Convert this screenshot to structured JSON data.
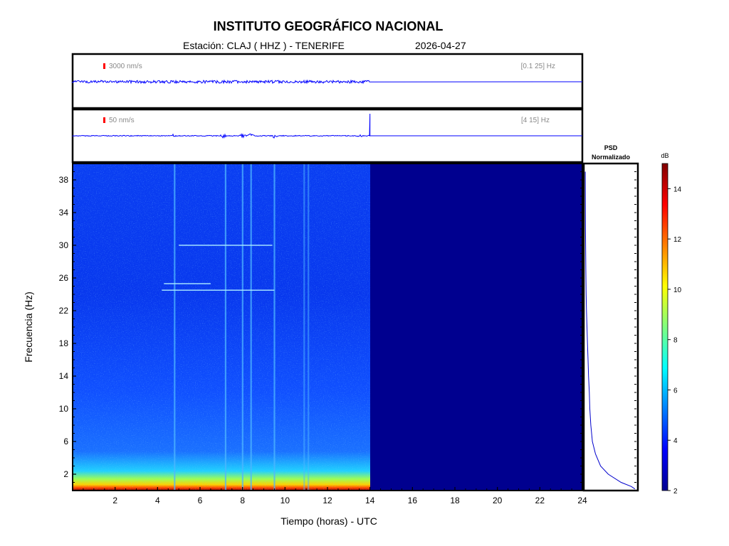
{
  "header": {
    "title": "INSTITUTO GEOGRÁFICO NACIONAL",
    "station": "Estación:  CLAJ ( HHZ ) - TENERIFE",
    "date": "2026-04-27"
  },
  "panels": {
    "trace1": {
      "amplitude_label": "3000 nm/s",
      "band_label": "[0.1 25] Hz"
    },
    "trace2": {
      "amplitude_label": "50 nm/s",
      "band_label": "[4 15] Hz"
    },
    "psd": {
      "title_line1": "PSD",
      "title_line2": "Normalizado"
    },
    "colorbar": {
      "unit": "dB"
    }
  },
  "colors": {
    "trace": "#0000ff",
    "scale_marker": "#ff0000",
    "no_data": "#00008f",
    "frame": "#000000"
  },
  "chart_data": [
    {
      "type": "line",
      "name": "seismogram-broadband",
      "xlabel": "",
      "ylabel": "",
      "xlim": [
        0,
        24
      ],
      "data_until_hour": 14,
      "series": [
        {
          "x": [
            0,
            14,
            14,
            24
          ],
          "y": [
            1,
            1,
            0,
            0
          ]
        }
      ]
    },
    {
      "type": "line",
      "name": "seismogram-filtered",
      "xlim": [
        0,
        24
      ],
      "data_until_hour": 14,
      "transients_hours": [
        4.8,
        7.1,
        8.0,
        8.4,
        9.5,
        13.5
      ]
    },
    {
      "type": "heatmap",
      "xlabel": "Tiempo (horas) - UTC",
      "ylabel": "Frecuencia  (Hz)",
      "xlim": [
        0,
        24
      ],
      "ylim": [
        0,
        40
      ],
      "x_ticks": [
        "2",
        "4",
        "6",
        "8",
        "10",
        "12",
        "14",
        "16",
        "18",
        "20",
        "22",
        "24"
      ],
      "y_ticks": [
        "2",
        "6",
        "10",
        "14",
        "18",
        "22",
        "26",
        "30",
        "34",
        "38"
      ],
      "data_until_hour": 14,
      "vertical_events_hours": [
        4.8,
        7.2,
        8.0,
        8.4,
        9.5,
        10.9,
        11.1
      ],
      "horizontal_lines": [
        {
          "freq_hz": 24.5,
          "from_hour": 4.2,
          "to_hour": 9.5
        },
        {
          "freq_hz": 25.3,
          "from_hour": 4.3,
          "to_hour": 6.5
        },
        {
          "freq_hz": 30.0,
          "from_hour": 5.0,
          "to_hour": 9.4
        }
      ]
    },
    {
      "type": "line",
      "name": "psd-normalized",
      "xlim": [
        0,
        1
      ],
      "ylim": [
        0,
        40
      ],
      "x": [
        0.97,
        0.9,
        0.7,
        0.45,
        0.3,
        0.2,
        0.14,
        0.11,
        0.09,
        0.08,
        0.065,
        0.055,
        0.045,
        0.035,
        0.025,
        0.018,
        0.012,
        0.006,
        0.002
      ],
      "y": [
        0.2,
        0.5,
        1.0,
        2.0,
        3.0,
        4.5,
        6.0,
        8.0,
        10.0,
        12.0,
        14.0,
        16.0,
        18.0,
        20.0,
        22.0,
        24.0,
        27.0,
        32.0,
        39.0
      ]
    },
    {
      "type": "heatmap",
      "name": "colorbar",
      "ylabel": "dB",
      "ylim": [
        2,
        15
      ],
      "ticks": [
        "2",
        "4",
        "6",
        "8",
        "10",
        "12",
        "14"
      ]
    }
  ]
}
